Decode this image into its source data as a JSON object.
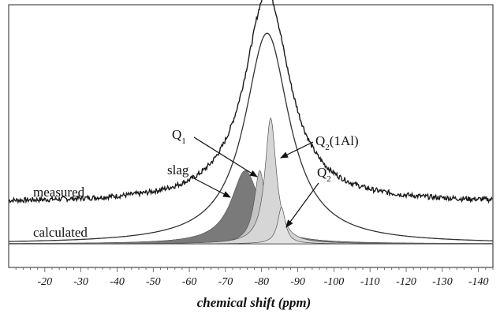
{
  "chart_data": {
    "type": "line",
    "xlabel": "chemical shift (ppm)",
    "xlim": [
      -10,
      -144
    ],
    "tick_values": [
      -20,
      -30,
      -40,
      -50,
      -60,
      -70,
      -80,
      -90,
      -100,
      -110,
      -120,
      -130,
      -140
    ],
    "tick_labels": [
      "-20",
      "-30",
      "-40",
      "-50",
      "-60",
      "-70",
      "-80",
      "-90",
      "-100",
      "-110",
      "-120",
      "-130",
      "-140"
    ],
    "grid": false,
    "series_labels": {
      "measured": "measured",
      "calculated": "calculated"
    },
    "component_labels": [
      {
        "main": "slag",
        "sub": "",
        "suffix": ""
      },
      {
        "main": "Q",
        "sub": "1",
        "suffix": ""
      },
      {
        "main": "Q",
        "sub": "2",
        "suffix": "(1Al)"
      },
      {
        "main": "Q",
        "sub": "2",
        "suffix": ""
      }
    ],
    "components": [
      {
        "id": "slag",
        "center": -75.5,
        "height": 0.64,
        "width": 6.6,
        "color": "#7a7a7a"
      },
      {
        "id": "q1",
        "center": -79.5,
        "height": 0.64,
        "width": 2.6,
        "color": "#c4c4c4"
      },
      {
        "id": "q2_1al",
        "center": -82.5,
        "height": 1.1,
        "width": 2.6,
        "color": "#d6d6d6"
      },
      {
        "id": "q2",
        "center": -85.5,
        "height": 0.32,
        "width": 1.8,
        "color": "#e2e2e2"
      }
    ],
    "calculated_envelope": {
      "center": -81.5,
      "height": 1.84,
      "width": 7.5
    },
    "measured": {
      "center": -81.5,
      "height": 1.84,
      "width": 7.5,
      "offset": 0.36
    }
  },
  "colors": {
    "measured_line": "#1a1a1a",
    "calculated_line": "#333333",
    "frame": "#222222"
  }
}
